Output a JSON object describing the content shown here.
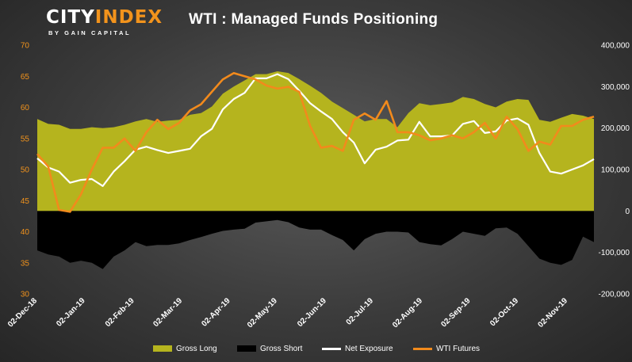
{
  "logo": {
    "main_a": "CITY",
    "main_b": "INDEX",
    "sub": "BY GAIN CAPITAL"
  },
  "title": "WTI : Managed Funds Positioning",
  "colors": {
    "gross_long": "#b5b41e",
    "gross_short": "#000000",
    "net_exposure": "#ffffff",
    "wti_futures": "#f28a1c",
    "left_axis": "#f2931c",
    "right_axis": "#ffffff"
  },
  "legend": [
    {
      "id": "gross-long",
      "label": "Gross Long"
    },
    {
      "id": "gross-short",
      "label": "Gross Short"
    },
    {
      "id": "net-exposure",
      "label": "Net Exposure"
    },
    {
      "id": "wti-futures",
      "label": "WTI Futures"
    }
  ],
  "chart_data": {
    "type": "area",
    "title": "WTI : Managed Funds Positioning",
    "left_axis": {
      "label": "",
      "ylim": [
        30,
        70
      ],
      "ticks": [
        "30",
        "35",
        "40",
        "45",
        "50",
        "55",
        "60",
        "65",
        "70"
      ]
    },
    "right_axis": {
      "label": "",
      "ylim": [
        -200000,
        400000
      ],
      "ticks": [
        "-200,000",
        "-100,000",
        "0",
        "100,000",
        "200,000",
        "300,000",
        "400,000"
      ]
    },
    "x_labels": [
      "02-Dec-18",
      "02-Jan-19",
      "02-Feb-19",
      "02-Mar-19",
      "02-Apr-19",
      "02-May-19",
      "02-Jun-19",
      "02-Jul-19",
      "02-Aug-19",
      "02-Sep-19",
      "02-Oct-19",
      "02-Nov-19"
    ],
    "x_label_index": [
      0,
      4.4,
      8.9,
      13.3,
      17.7,
      22,
      26.5,
      30.8,
      35.3,
      39.7,
      44.1,
      48.6
    ],
    "x_count": 52,
    "legend_position": "bottom",
    "grid": false,
    "series": [
      {
        "name": "Gross Long",
        "axis": "right",
        "kind": "area",
        "values": [
          222000,
          210000,
          208000,
          198000,
          198000,
          202000,
          200000,
          202000,
          208000,
          216000,
          222000,
          215000,
          218000,
          220000,
          232000,
          236000,
          252000,
          283000,
          300000,
          315000,
          330000,
          330000,
          337000,
          333000,
          318000,
          302000,
          285000,
          264000,
          248000,
          232000,
          216000,
          222000,
          222000,
          202000,
          236000,
          260000,
          255000,
          258000,
          262000,
          275000,
          270000,
          258000,
          250000,
          264000,
          270000,
          268000,
          220000,
          215000,
          225000,
          234000,
          230000,
          222000
        ]
      },
      {
        "name": "Gross Short",
        "axis": "right",
        "kind": "area",
        "values": [
          -95000,
          -105000,
          -110000,
          -125000,
          -120000,
          -125000,
          -140000,
          -110000,
          -95000,
          -75000,
          -85000,
          -82000,
          -82000,
          -78000,
          -70000,
          -63000,
          -55000,
          -48000,
          -45000,
          -43000,
          -28000,
          -25000,
          -22000,
          -27000,
          -40000,
          -45000,
          -45000,
          -58000,
          -70000,
          -95000,
          -68000,
          -55000,
          -50000,
          -50000,
          -52000,
          -75000,
          -80000,
          -83000,
          -68000,
          -50000,
          -55000,
          -60000,
          -42000,
          -40000,
          -55000,
          -85000,
          -115000,
          -125000,
          -130000,
          -118000,
          -62000,
          -75000
        ]
      },
      {
        "name": "Net Exposure",
        "axis": "right",
        "kind": "line",
        "values": [
          127000,
          105000,
          95000,
          68000,
          75000,
          77000,
          60000,
          95000,
          120000,
          148000,
          155000,
          147000,
          140000,
          145000,
          150000,
          180000,
          198000,
          245000,
          270000,
          285000,
          320000,
          320000,
          330000,
          318000,
          290000,
          260000,
          240000,
          222000,
          190000,
          165000,
          115000,
          148000,
          155000,
          170000,
          172000,
          215000,
          180000,
          180000,
          182000,
          210000,
          217000,
          188000,
          192000,
          218000,
          223000,
          208000,
          140000,
          95000,
          90000,
          100000,
          110000,
          125000
        ]
      },
      {
        "name": "WTI Futures",
        "axis": "left",
        "kind": "line",
        "values": [
          52.5,
          50.5,
          43.5,
          43.2,
          46.0,
          50.0,
          53.5,
          53.5,
          55.0,
          53.0,
          56.0,
          58.0,
          56.5,
          57.5,
          59.5,
          60.5,
          62.5,
          64.5,
          65.5,
          65.0,
          64.5,
          63.5,
          63.0,
          63.3,
          62.5,
          57.0,
          53.5,
          53.8,
          53.0,
          58.0,
          59.0,
          58.0,
          61.0,
          56.0,
          56.0,
          55.5,
          54.7,
          55.0,
          55.5,
          55.0,
          56.0,
          57.5,
          55.0,
          58.5,
          56.5,
          53.0,
          54.5,
          54.0,
          57.0,
          57.0,
          58.0,
          58.5
        ]
      }
    ]
  }
}
